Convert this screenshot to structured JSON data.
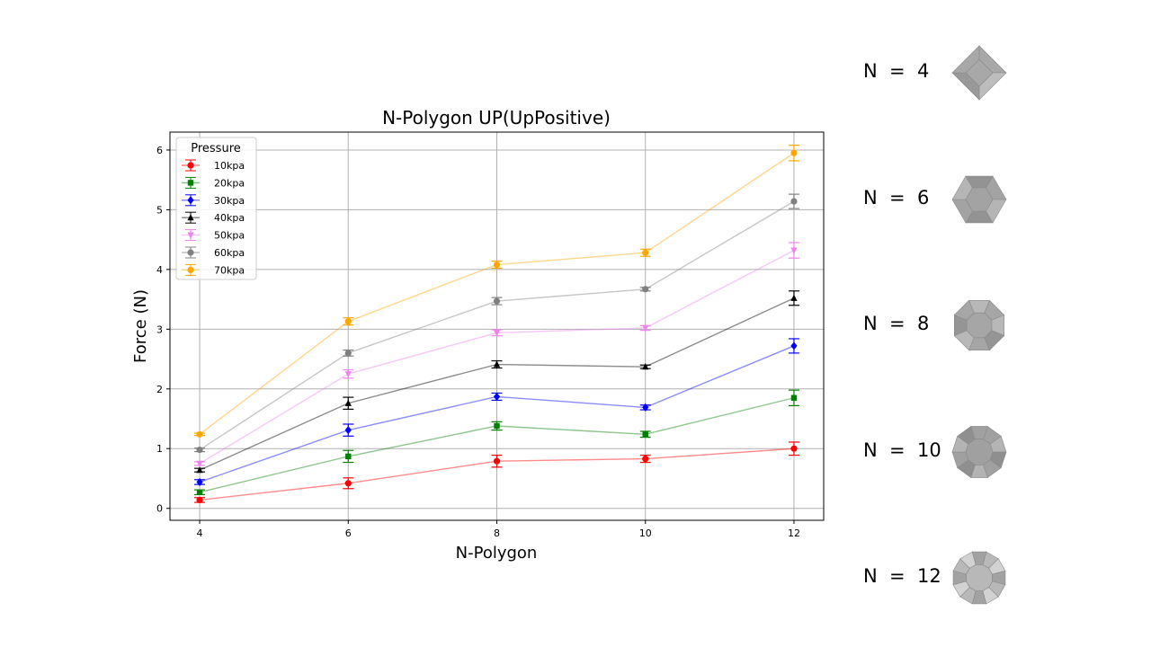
{
  "chart_data": {
    "type": "line",
    "title": "N-Polygon UP(UpPositive)",
    "xlabel": "N-Polygon",
    "ylabel": "Force (N)",
    "x": [
      4,
      6,
      8,
      10,
      12
    ],
    "xlim": [
      3.6,
      12.4
    ],
    "ylim": [
      -0.2,
      6.3
    ],
    "xticks": [
      "4",
      "6",
      "8",
      "10",
      "12"
    ],
    "yticks": [
      "0",
      "1",
      "2",
      "3",
      "4",
      "5",
      "6"
    ],
    "grid": true,
    "legend": {
      "title": "Pressure",
      "placement": "upper-left"
    },
    "series": [
      {
        "name": "10kpa",
        "color": "#ff0000",
        "marker": "circle",
        "values": [
          0.14,
          0.42,
          0.79,
          0.83,
          1.0
        ],
        "err": [
          0.04,
          0.09,
          0.1,
          0.06,
          0.11
        ]
      },
      {
        "name": "20kpa",
        "color": "#008000",
        "marker": "square",
        "values": [
          0.27,
          0.87,
          1.38,
          1.24,
          1.85
        ],
        "err": [
          0.04,
          0.1,
          0.07,
          0.05,
          0.13
        ]
      },
      {
        "name": "30kpa",
        "color": "#0000ff",
        "marker": "diamond",
        "values": [
          0.44,
          1.31,
          1.87,
          1.69,
          2.72
        ],
        "err": [
          0.04,
          0.1,
          0.06,
          0.04,
          0.12
        ]
      },
      {
        "name": "40kpa",
        "color": "#000000",
        "marker": "triangle-up",
        "values": [
          0.64,
          1.76,
          2.41,
          2.37,
          3.52
        ],
        "err": [
          0.03,
          0.1,
          0.06,
          0.03,
          0.12
        ]
      },
      {
        "name": "50kpa",
        "color": "#ee82ee",
        "marker": "triangle-down",
        "values": [
          0.75,
          2.25,
          2.94,
          3.02,
          4.32
        ],
        "err": [
          0.03,
          0.07,
          0.05,
          0.04,
          0.13
        ]
      },
      {
        "name": "60kpa",
        "color": "#808080",
        "marker": "circle",
        "values": [
          0.98,
          2.6,
          3.47,
          3.67,
          5.14
        ],
        "err": [
          0.03,
          0.05,
          0.06,
          0.03,
          0.12
        ]
      },
      {
        "name": "70kpa",
        "color": "#ffa500",
        "marker": "circle",
        "values": [
          1.24,
          3.13,
          4.08,
          4.28,
          5.95
        ],
        "err": [
          0.02,
          0.06,
          0.06,
          0.06,
          0.13
        ]
      }
    ]
  },
  "shapes": [
    {
      "label": "N = 4",
      "sides": 4
    },
    {
      "label": "N = 6",
      "sides": 6
    },
    {
      "label": "N = 8",
      "sides": 8
    },
    {
      "label": "N = 10",
      "sides": 10
    },
    {
      "label": "N = 12",
      "sides": 12
    }
  ]
}
